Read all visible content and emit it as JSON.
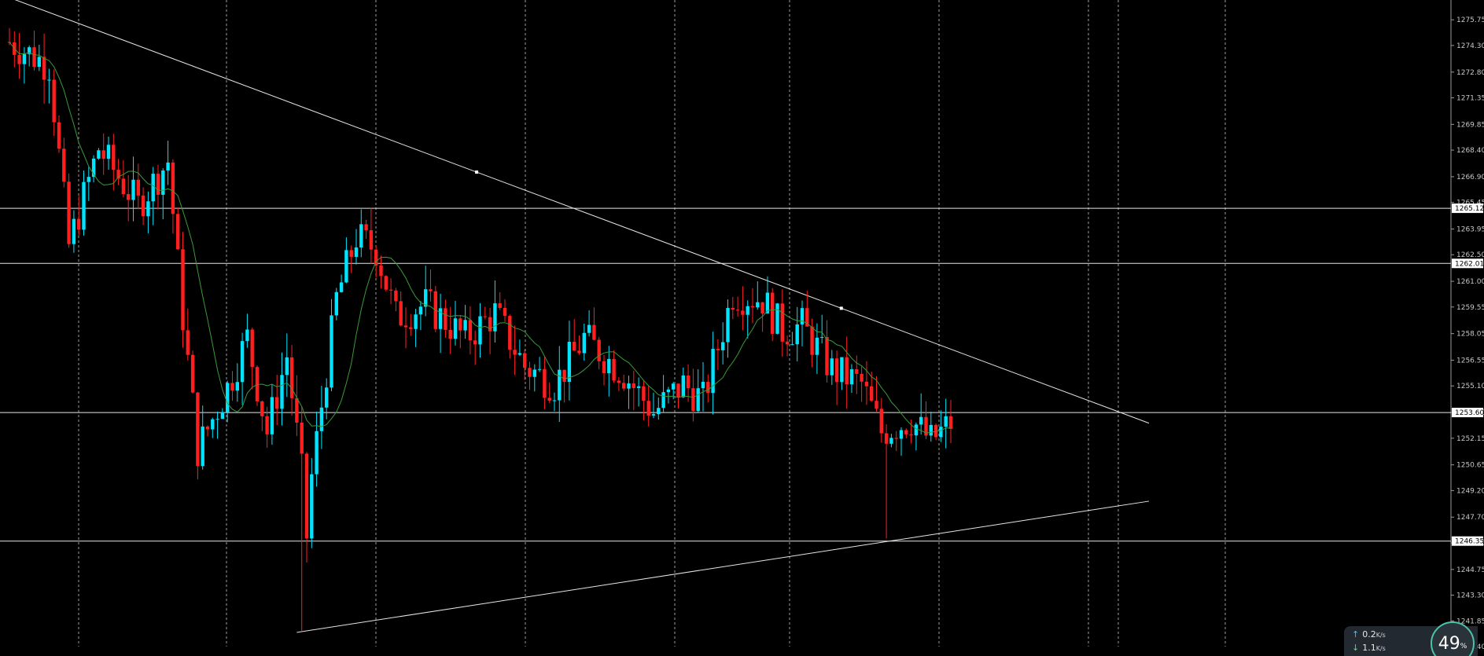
{
  "chart_data": {
    "type": "candlestick",
    "title": "",
    "xlabel": "",
    "ylabel": "",
    "ylim": [
      1240.4,
      1276.6
    ],
    "grid": "vertical-dashed",
    "y_ticks": [
      "1275.75",
      "1274.30",
      "1272.80",
      "1271.35",
      "1269.85",
      "1268.40",
      "1266.90",
      "1265.45",
      "1263.95",
      "1262.50",
      "1261.00",
      "1259.55",
      "1258.05",
      "1256.55",
      "1255.10",
      "1253.60",
      "1252.15",
      "1250.65",
      "1249.20",
      "1247.70",
      "1246.25",
      "1244.75",
      "1243.30",
      "1241.85",
      "1240.40"
    ],
    "price_tags": [
      {
        "label": "1265.12",
        "value": 1265.12
      },
      {
        "label": "1262.01",
        "value": 1262.01
      },
      {
        "label": "1253.60",
        "value": 1253.6
      },
      {
        "label": "1246.35",
        "value": 1246.35
      }
    ],
    "horizontal_lines": [
      1265.12,
      1262.01,
      1253.6,
      1246.35
    ],
    "trend_lines": [
      {
        "name": "upper-trendline",
        "start": {
          "bar": 0,
          "value": 1277.0
        },
        "end": {
          "bar": 230,
          "value": 1253.0
        }
      },
      {
        "name": "lower-trendline",
        "start": {
          "bar": 58,
          "value": 1241.2
        },
        "end": {
          "bar": 230,
          "value": 1248.6
        }
      }
    ],
    "candles": [],
    "moving_average": [],
    "colors": {
      "bull": "#00e5ff",
      "bear": "#ff1f1f",
      "ma": "#3a9a3a",
      "line": "#e6e6e6",
      "grid": "#cfcfcf",
      "background": "#000000"
    }
  },
  "net_widget": {
    "upload_value": "0.2",
    "upload_unit": "K/s",
    "download_value": "1.1",
    "download_unit": "K/s",
    "percent_value": "49",
    "percent_unit": "%"
  }
}
